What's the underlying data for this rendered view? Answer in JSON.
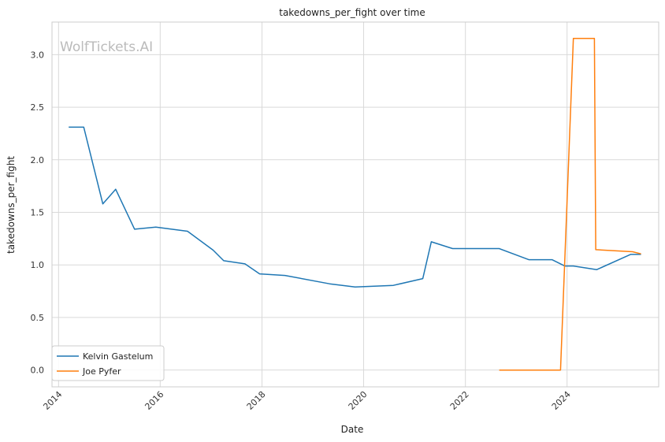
{
  "chart_data": {
    "type": "line",
    "title": "takedowns_per_fight over time",
    "xlabel": "Date",
    "ylabel": "takedowns_per_fight",
    "watermark": "WolfTickets.AI",
    "xlim": [
      "2013-11-15",
      "2025-10-20"
    ],
    "ylim": [
      -0.16,
      3.31
    ],
    "x_ticks": [
      "2014",
      "2016",
      "2018",
      "2020",
      "2022",
      "2024"
    ],
    "y_ticks": [
      "0.0",
      "0.5",
      "1.0",
      "1.5",
      "2.0",
      "2.5",
      "3.0"
    ],
    "grid": true,
    "legend_position": "lower-left",
    "series": [
      {
        "name": "Kelvin Gastelum",
        "color": "#1f77b4",
        "points": [
          [
            "2014-03-15",
            2.31
          ],
          [
            "2014-07-01",
            2.31
          ],
          [
            "2014-11-15",
            1.58
          ],
          [
            "2015-02-15",
            1.72
          ],
          [
            "2015-07-01",
            1.34
          ],
          [
            "2015-12-01",
            1.36
          ],
          [
            "2016-07-15",
            1.32
          ],
          [
            "2017-01-15",
            1.14
          ],
          [
            "2017-04-01",
            1.04
          ],
          [
            "2017-09-01",
            1.01
          ],
          [
            "2017-12-15",
            0.915
          ],
          [
            "2018-06-15",
            0.9
          ],
          [
            "2019-05-01",
            0.82
          ],
          [
            "2019-11-01",
            0.79
          ],
          [
            "2020-08-01",
            0.805
          ],
          [
            "2021-03-01",
            0.87
          ],
          [
            "2021-05-01",
            1.22
          ],
          [
            "2021-10-01",
            1.155
          ],
          [
            "2022-03-01",
            1.155
          ],
          [
            "2022-09-01",
            1.155
          ],
          [
            "2023-04-01",
            1.05
          ],
          [
            "2023-09-15",
            1.05
          ],
          [
            "2023-12-15",
            0.99
          ],
          [
            "2024-02-15",
            0.99
          ],
          [
            "2024-08-01",
            0.955
          ],
          [
            "2025-04-01",
            1.1
          ],
          [
            "2025-06-15",
            1.1
          ]
        ]
      },
      {
        "name": "Joe Pyfer",
        "color": "#ff7f0e",
        "points": [
          [
            "2022-09-01",
            0.0
          ],
          [
            "2023-11-15",
            0.0
          ],
          [
            "2024-02-15",
            3.155
          ],
          [
            "2024-07-15",
            3.155
          ],
          [
            "2024-07-25",
            1.145
          ],
          [
            "2025-04-15",
            1.125
          ],
          [
            "2025-06-15",
            1.105
          ]
        ]
      }
    ]
  }
}
